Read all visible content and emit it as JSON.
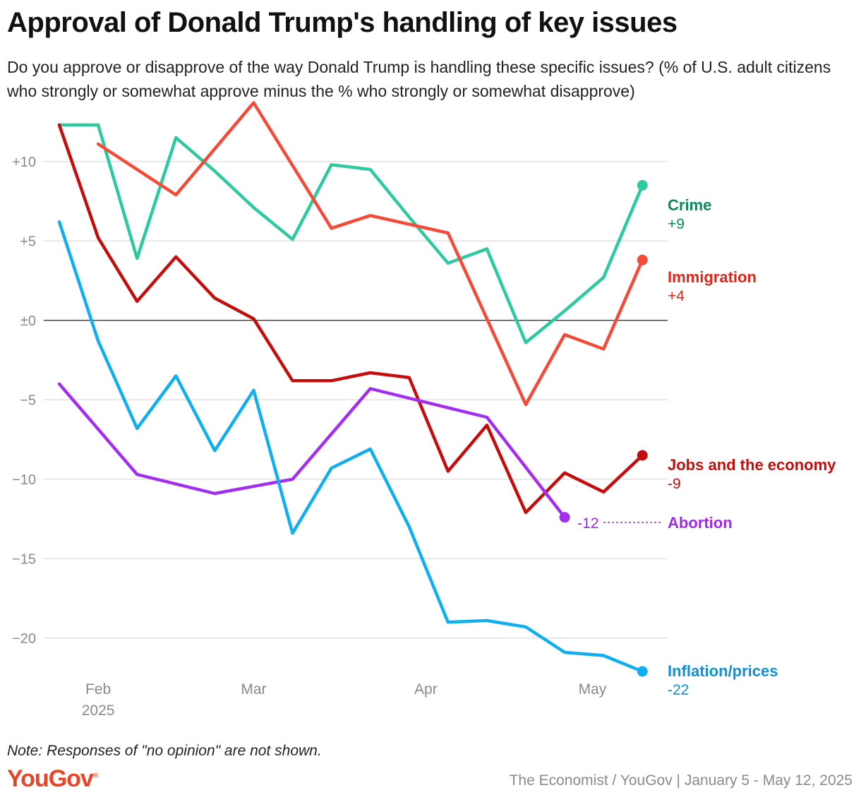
{
  "title": "Approval of Donald Trump's handling of key issues",
  "subtitle": "Do you approve or disapprove of the way Donald Trump is handling these specific issues? (% of U.S. adult citizens who strongly or somewhat approve minus the % who strongly or somewhat disapprove)",
  "note": "Note: Responses of \"no opinion\" are not shown.",
  "logo": "YouGov",
  "source": "The Economist / YouGov | January 5 - May 12, 2025",
  "chart_data": {
    "type": "line",
    "x_tick_labels": [
      {
        "date": "2025-02-01",
        "label": "Feb",
        "sub": "2025"
      },
      {
        "date": "2025-03-01",
        "label": "Mar",
        "sub": ""
      },
      {
        "date": "2025-04-01",
        "label": "Apr",
        "sub": ""
      },
      {
        "date": "2025-05-01",
        "label": "May",
        "sub": ""
      }
    ],
    "xlim": [
      "2025-01-25",
      "2025-05-12"
    ],
    "y_ticks": [
      10,
      5,
      0,
      -5,
      -10,
      -15,
      -20
    ],
    "y_tick_labels": [
      "+10",
      "+5",
      "±0",
      "−5",
      "−10",
      "−15",
      "−20"
    ],
    "ylim": [
      -22.5,
      13.5
    ],
    "grid": true,
    "series": [
      {
        "name": "Crime",
        "end_label": "+9",
        "color": "#2ec99e",
        "label_color": "#0b8a5e",
        "x": [
          "2025-01-25",
          "2025-02-01",
          "2025-02-08",
          "2025-02-15",
          "2025-02-22",
          "2025-03-01",
          "2025-03-08",
          "2025-03-15",
          "2025-03-22",
          "2025-03-29",
          "2025-04-05",
          "2025-04-12",
          "2025-04-19",
          "2025-04-26",
          "2025-05-03",
          "2025-05-10"
        ],
        "values": [
          12.3,
          12.3,
          3.9,
          11.5,
          9.4,
          7.1,
          5.1,
          9.8,
          9.5,
          6.5,
          3.6,
          4.5,
          -1.4,
          0.6,
          2.7,
          8.5
        ]
      },
      {
        "name": "Immigration",
        "end_label": "+4",
        "color": "#f54a38",
        "label_color": "#e0261a",
        "x": [
          "2025-02-01",
          "2025-02-15",
          "2025-03-01",
          "2025-03-15",
          "2025-03-22",
          "2025-04-05",
          "2025-04-19",
          "2025-04-26",
          "2025-05-03",
          "2025-05-10"
        ],
        "values": [
          11.1,
          7.9,
          13.7,
          5.8,
          6.6,
          5.5,
          -5.3,
          -0.9,
          -1.8,
          3.8
        ]
      },
      {
        "name": "Jobs and the economy",
        "end_label": "-9",
        "color": "#c40e0e",
        "label_color": "#c40e0e",
        "x": [
          "2025-01-25",
          "2025-02-01",
          "2025-02-08",
          "2025-02-15",
          "2025-02-22",
          "2025-03-01",
          "2025-03-08",
          "2025-03-15",
          "2025-03-22",
          "2025-03-29",
          "2025-04-05",
          "2025-04-12",
          "2025-04-19",
          "2025-04-26",
          "2025-05-03",
          "2025-05-10"
        ],
        "values": [
          12.3,
          5.2,
          1.2,
          4.0,
          1.4,
          0.1,
          -3.8,
          -3.8,
          -3.3,
          -3.6,
          -9.5,
          -6.6,
          -12.1,
          -9.6,
          -10.8,
          -8.5
        ]
      },
      {
        "name": "Abortion",
        "end_label": "-12",
        "color": "#a22ff0",
        "label_color": "#9d2ae8",
        "x": [
          "2025-01-25",
          "2025-02-08",
          "2025-02-22",
          "2025-03-08",
          "2025-03-22",
          "2025-04-12",
          "2025-04-26"
        ],
        "values": [
          -4.0,
          -9.7,
          -10.9,
          -10.0,
          -4.3,
          -6.1,
          -12.4
        ]
      },
      {
        "name": "Inflation/prices",
        "end_label": "-22",
        "color": "#11aef0",
        "label_color": "#1190d6",
        "x": [
          "2025-01-25",
          "2025-02-01",
          "2025-02-08",
          "2025-02-15",
          "2025-02-22",
          "2025-03-01",
          "2025-03-08",
          "2025-03-15",
          "2025-03-22",
          "2025-03-29",
          "2025-04-05",
          "2025-04-12",
          "2025-04-19",
          "2025-04-26",
          "2025-05-03",
          "2025-05-10"
        ],
        "values": [
          6.2,
          -1.3,
          -6.8,
          -3.5,
          -8.2,
          -4.4,
          -13.4,
          -9.3,
          -8.1,
          -13.0,
          -19.0,
          -18.9,
          -19.3,
          -20.9,
          -21.1,
          -22.1
        ]
      }
    ]
  }
}
